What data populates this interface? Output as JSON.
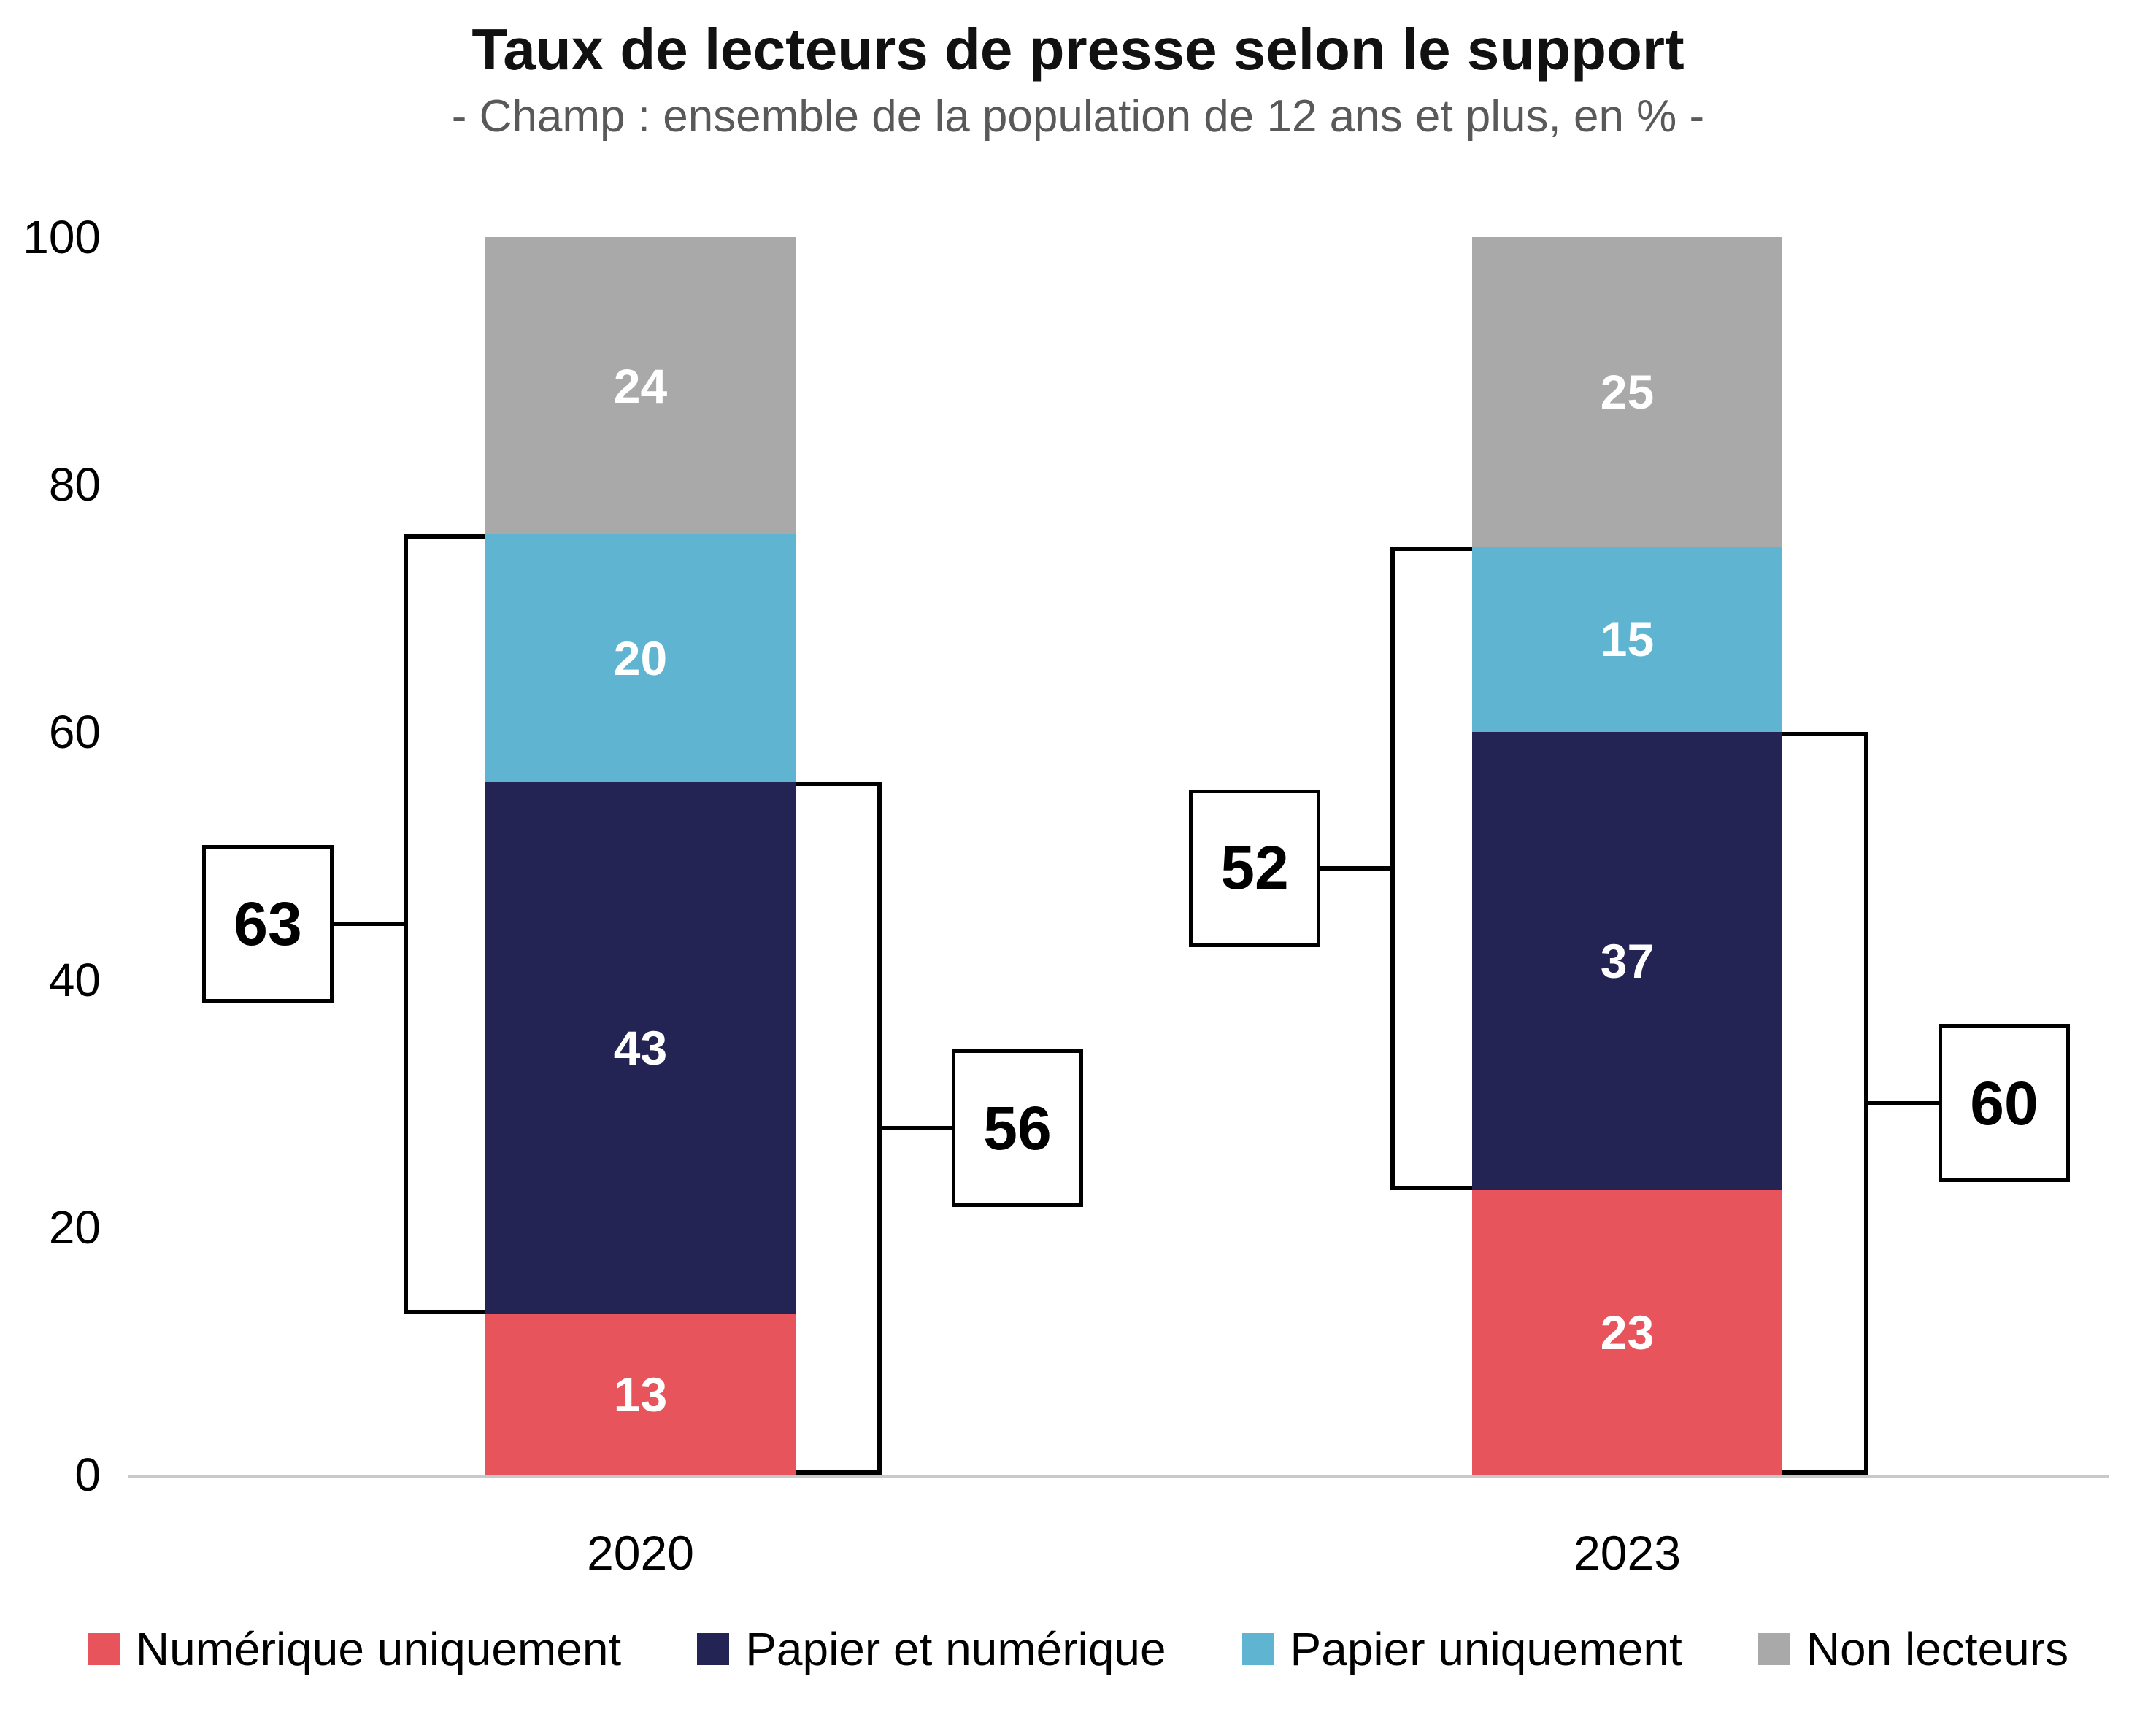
{
  "chart_data": {
    "type": "bar",
    "stacked": true,
    "title": "Taux de lecteurs de presse selon le support",
    "subtitle": "- Champ : ensemble de la population de 12 ans et plus, en % -",
    "categories": [
      "2020",
      "2023"
    ],
    "series": [
      {
        "name": "Numérique uniquement",
        "color": "#E8545C",
        "values": [
          13,
          23
        ]
      },
      {
        "name": "Papier et numérique",
        "color": "#232354",
        "values": [
          43,
          37
        ]
      },
      {
        "name": "Papier uniquement",
        "color": "#5FB4D2",
        "values": [
          20,
          15
        ]
      },
      {
        "name": "Non lecteurs",
        "color": "#A9A9A9",
        "values": [
          24,
          25
        ]
      }
    ],
    "yticks": [
      0,
      20,
      40,
      60,
      80,
      100
    ],
    "ylim": [
      0,
      100
    ],
    "grid": false,
    "legend_position": "bottom",
    "annotations": [
      {
        "label": "63",
        "category": "2020",
        "side": "left",
        "from": 13,
        "to": 76
      },
      {
        "label": "56",
        "category": "2020",
        "side": "right",
        "from": 0,
        "to": 56
      },
      {
        "label": "52",
        "category": "2023",
        "side": "left",
        "from": 23,
        "to": 75
      },
      {
        "label": "60",
        "category": "2023",
        "side": "right",
        "from": 0,
        "to": 60
      }
    ]
  }
}
